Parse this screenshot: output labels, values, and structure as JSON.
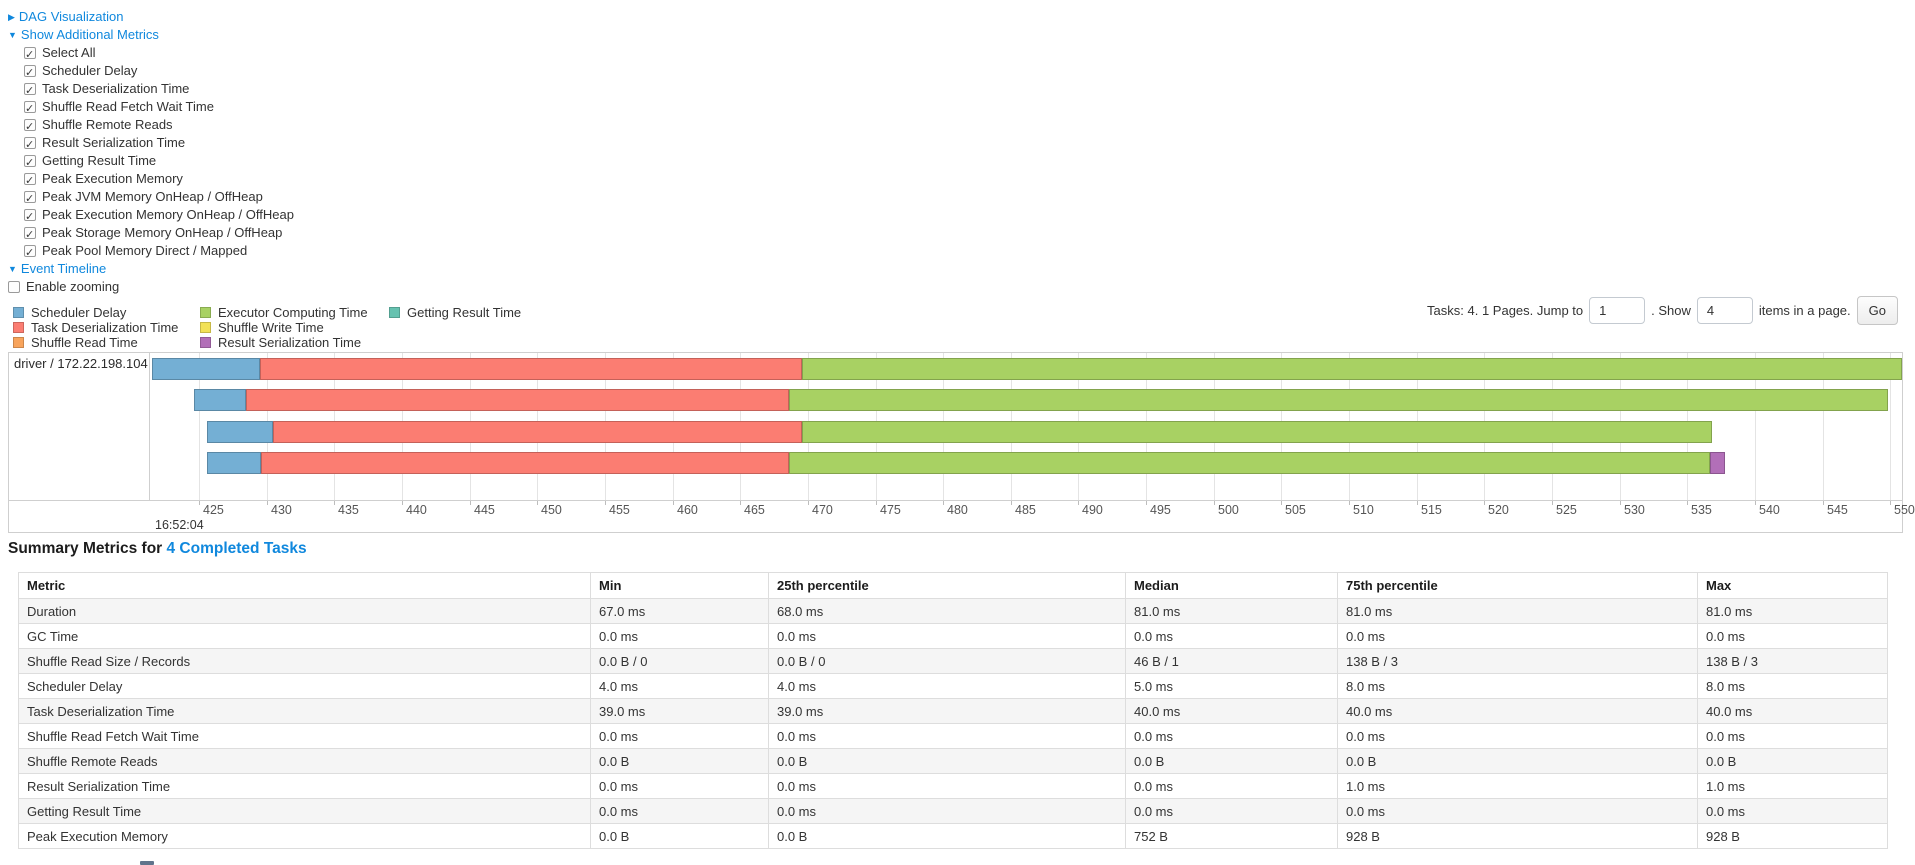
{
  "links": {
    "dag": "DAG Visualization",
    "metrics": "Show Additional Metrics",
    "timeline": "Event Timeline"
  },
  "checkboxes": {
    "items": [
      {
        "label": "Select All",
        "checked": true
      },
      {
        "label": "Scheduler Delay",
        "checked": true
      },
      {
        "label": "Task Deserialization Time",
        "checked": true
      },
      {
        "label": "Shuffle Read Fetch Wait Time",
        "checked": true
      },
      {
        "label": "Shuffle Remote Reads",
        "checked": true
      },
      {
        "label": "Result Serialization Time",
        "checked": true
      },
      {
        "label": "Getting Result Time",
        "checked": true
      },
      {
        "label": "Peak Execution Memory",
        "checked": true
      },
      {
        "label": "Peak JVM Memory OnHeap / OffHeap",
        "checked": true
      },
      {
        "label": "Peak Execution Memory OnHeap / OffHeap",
        "checked": true
      },
      {
        "label": "Peak Storage Memory OnHeap / OffHeap",
        "checked": true
      },
      {
        "label": "Peak Pool Memory Direct / Mapped",
        "checked": true
      }
    ],
    "enable_zooming": {
      "label": "Enable zooming",
      "checked": false
    }
  },
  "legend": {
    "items": [
      {
        "label": "Scheduler Delay",
        "color": "#74AFD4",
        "col": 0
      },
      {
        "label": "Task Deserialization Time",
        "color": "#FB7D72",
        "col": 0
      },
      {
        "label": "Shuffle Read Time",
        "color": "#F8A45C",
        "col": 0
      },
      {
        "label": "Executor Computing Time",
        "color": "#A8D163",
        "col": 1
      },
      {
        "label": "Shuffle Write Time",
        "color": "#F2E157",
        "col": 1
      },
      {
        "label": "Result Serialization Time",
        "color": "#B26FB8",
        "col": 1
      },
      {
        "label": "Getting Result Time",
        "color": "#66C2B0",
        "col": 2
      }
    ]
  },
  "pagination": {
    "prefix": "Tasks: 4. 1 Pages. Jump to",
    "jump_value": "1",
    "mid": ". Show",
    "show_value": "4",
    "suffix": "items in a page.",
    "go_label": "Go"
  },
  "chart_data": {
    "type": "gantt",
    "group_label": "driver / 172.22.198.104",
    "x_axis": {
      "ticks": [
        425,
        430,
        435,
        440,
        445,
        450,
        455,
        460,
        465,
        470,
        475,
        480,
        485,
        490,
        495,
        500,
        505,
        510,
        515,
        520,
        525,
        530,
        535,
        540,
        545,
        550
      ],
      "time_label": "16:52:04",
      "unit": "ms within second"
    },
    "colors": {
      "scheduler-delay": "#74AFD4",
      "task-deserialization": "#FB7D72",
      "shuffle-read": "#F8A45C",
      "executor-computing": "#A8D163",
      "shuffle-write": "#F2E157",
      "result-serialization": "#B26FB8",
      "getting-result": "#66C2B0"
    },
    "tasks": [
      {
        "segments": [
          {
            "name": "scheduler-delay",
            "start": 421.5,
            "end": 429.5
          },
          {
            "name": "task-deserialization",
            "start": 429.5,
            "end": 469.6
          },
          {
            "name": "executor-computing",
            "start": 469.6,
            "end": 551.5
          }
        ]
      },
      {
        "segments": [
          {
            "name": "scheduler-delay",
            "start": 424.6,
            "end": 428.5
          },
          {
            "name": "task-deserialization",
            "start": 428.5,
            "end": 468.6
          },
          {
            "name": "executor-computing",
            "start": 468.6,
            "end": 549.8
          }
        ]
      },
      {
        "segments": [
          {
            "name": "scheduler-delay",
            "start": 425.6,
            "end": 430.5
          },
          {
            "name": "task-deserialization",
            "start": 430.5,
            "end": 469.6
          },
          {
            "name": "executor-computing",
            "start": 469.6,
            "end": 536.8
          }
        ]
      },
      {
        "segments": [
          {
            "name": "scheduler-delay",
            "start": 425.6,
            "end": 429.6
          },
          {
            "name": "task-deserialization",
            "start": 429.6,
            "end": 468.6
          },
          {
            "name": "executor-computing",
            "start": 468.6,
            "end": 536.7
          },
          {
            "name": "result-serialization",
            "start": 536.7,
            "end": 537.8
          }
        ]
      }
    ]
  },
  "summary": {
    "title_prefix": "Summary Metrics for ",
    "title_link": "4 Completed Tasks",
    "table": {
      "headers": [
        "Metric",
        "Min",
        "25th percentile",
        "Median",
        "75th percentile",
        "Max"
      ],
      "rows": [
        {
          "metric": "Duration",
          "values": [
            "67.0 ms",
            "68.0 ms",
            "81.0 ms",
            "81.0 ms",
            "81.0 ms"
          ]
        },
        {
          "metric": "GC Time",
          "values": [
            "0.0 ms",
            "0.0 ms",
            "0.0 ms",
            "0.0 ms",
            "0.0 ms"
          ]
        },
        {
          "metric": "Shuffle Read Size / Records",
          "values": [
            "0.0 B / 0",
            "0.0 B / 0",
            "46 B / 1",
            "138 B / 3",
            "138 B / 3"
          ]
        },
        {
          "metric": "Scheduler Delay",
          "values": [
            "4.0 ms",
            "4.0 ms",
            "5.0 ms",
            "8.0 ms",
            "8.0 ms"
          ]
        },
        {
          "metric": "Task Deserialization Time",
          "values": [
            "39.0 ms",
            "39.0 ms",
            "40.0 ms",
            "40.0 ms",
            "40.0 ms"
          ]
        },
        {
          "metric": "Shuffle Read Fetch Wait Time",
          "values": [
            "0.0 ms",
            "0.0 ms",
            "0.0 ms",
            "0.0 ms",
            "0.0 ms"
          ]
        },
        {
          "metric": "Shuffle Remote Reads",
          "values": [
            "0.0 B",
            "0.0 B",
            "0.0 B",
            "0.0 B",
            "0.0 B"
          ]
        },
        {
          "metric": "Result Serialization Time",
          "values": [
            "0.0 ms",
            "0.0 ms",
            "0.0 ms",
            "1.0 ms",
            "1.0 ms"
          ]
        },
        {
          "metric": "Getting Result Time",
          "values": [
            "0.0 ms",
            "0.0 ms",
            "0.0 ms",
            "0.0 ms",
            "0.0 ms"
          ]
        },
        {
          "metric": "Peak Execution Memory",
          "values": [
            "0.0 B",
            "0.0 B",
            "752 B",
            "928 B",
            "928 B"
          ]
        }
      ]
    }
  }
}
